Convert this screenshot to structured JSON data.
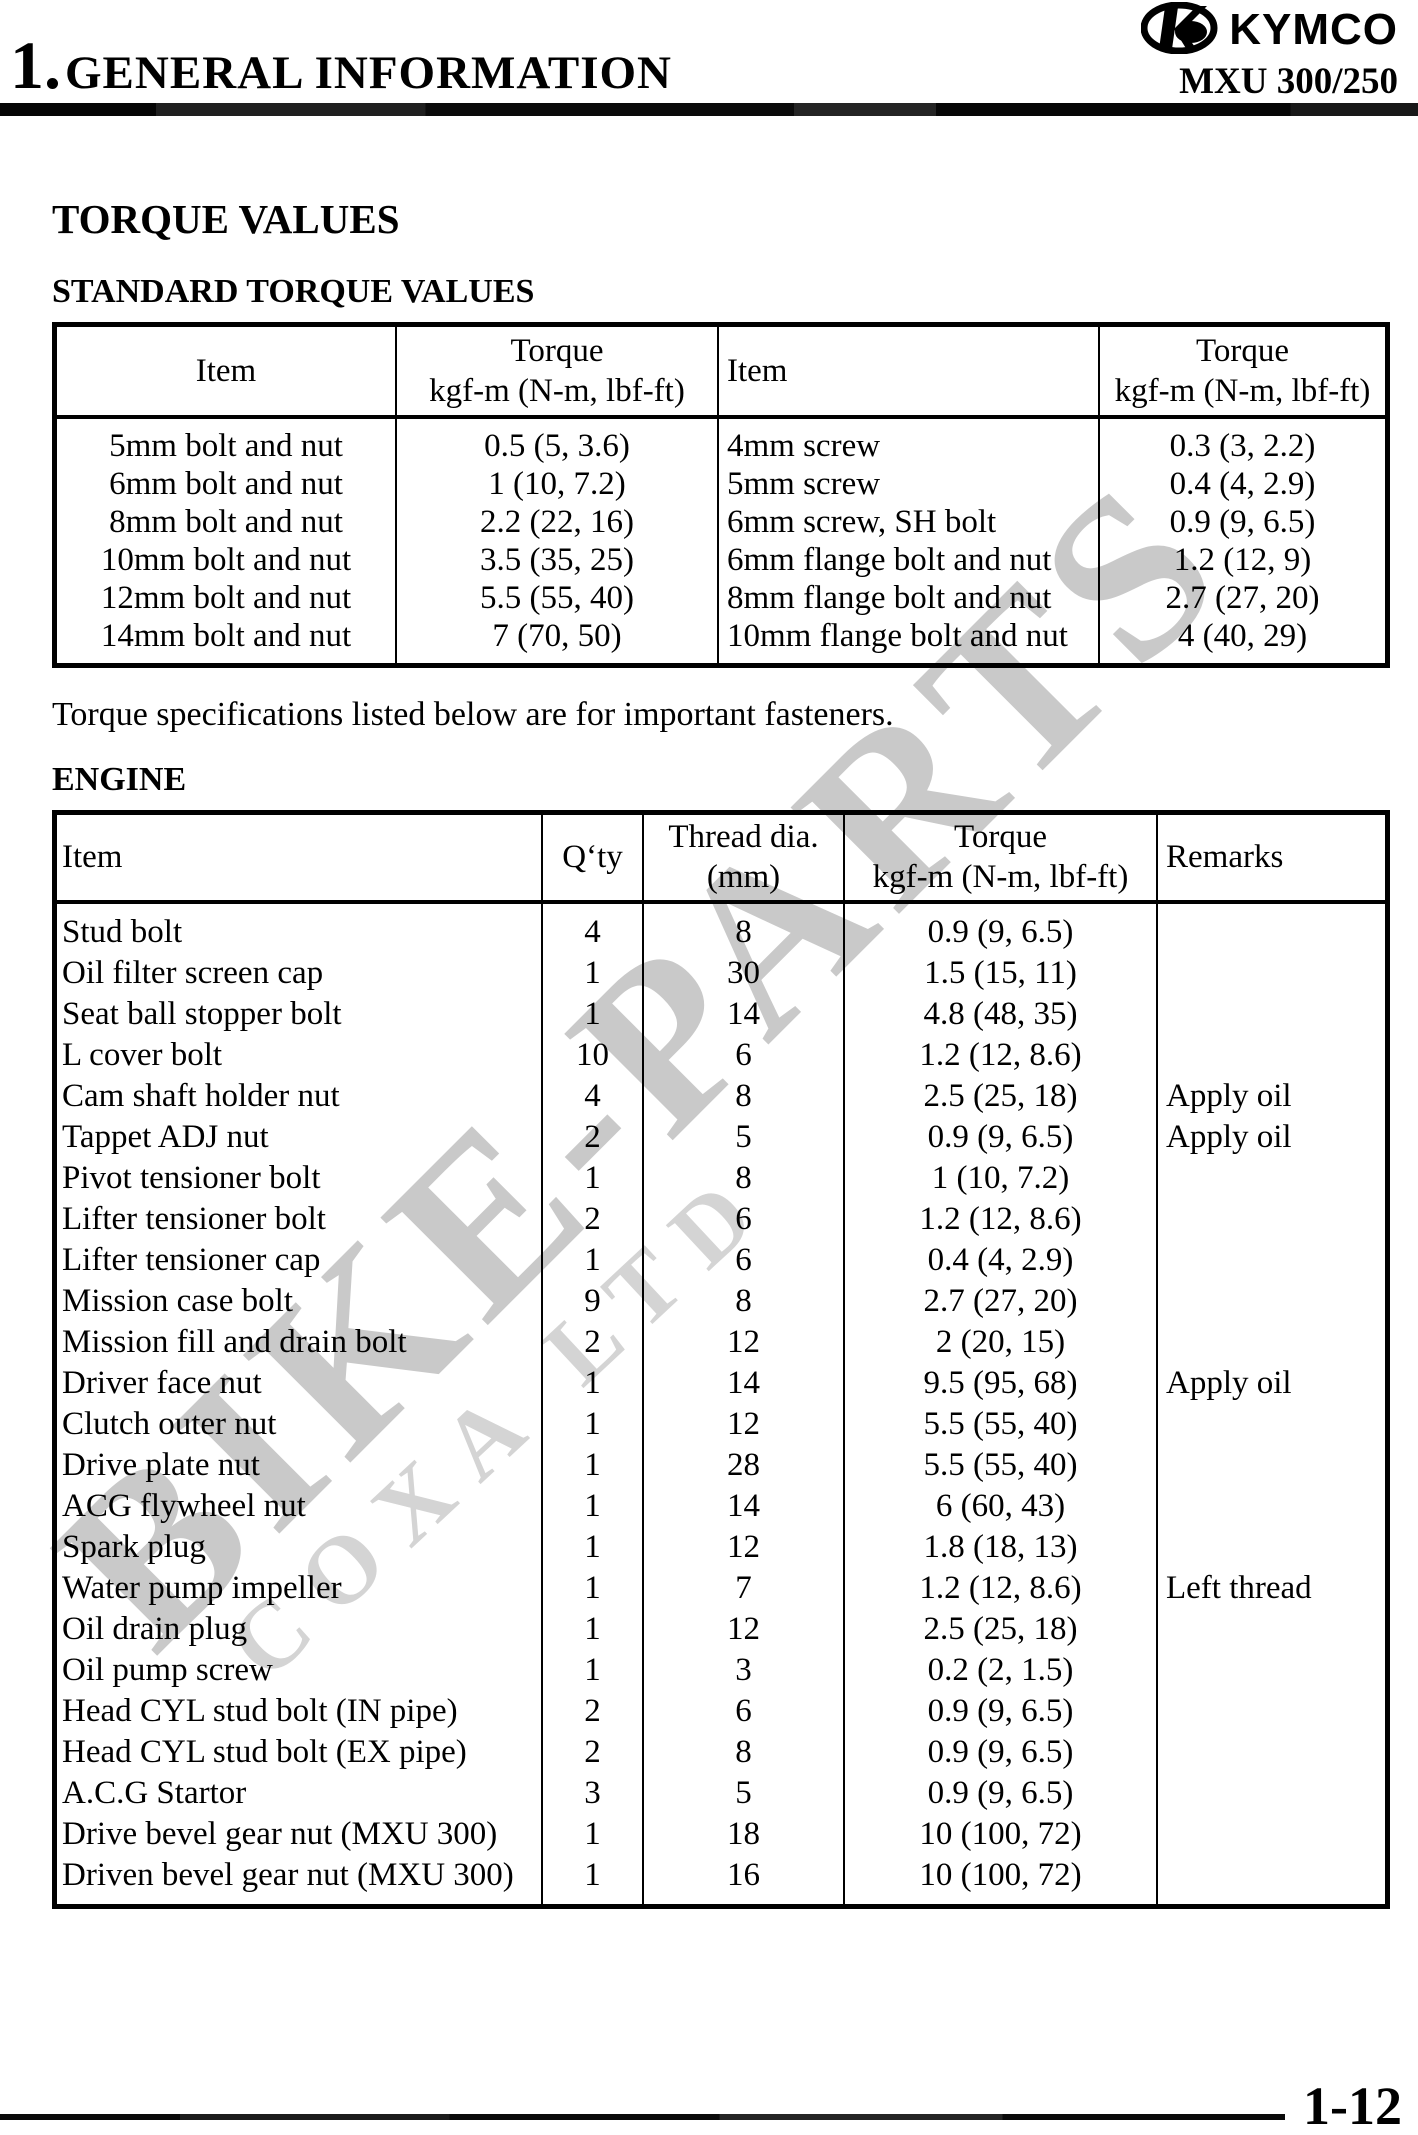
{
  "header": {
    "chapter_number": "1.",
    "chapter_name": "GENERAL INFORMATION",
    "brand": "KYMCO",
    "model": "MXU 300/250"
  },
  "sections": {
    "title": "TORQUE VALUES",
    "standard_heading": "STANDARD TORQUE VALUES",
    "note": "Torque specifications listed below are for important fasteners.",
    "engine_heading": "ENGINE"
  },
  "watermark": {
    "main": "BIKE-PARTS",
    "sub": "COXA LTD"
  },
  "standard_table": {
    "headers": [
      "Item",
      "Torque\nkgf-m (N-m, lbf-ft)",
      "Item",
      "Torque\nkgf-m (N-m, lbf-ft)"
    ],
    "left_rows": [
      [
        "5mm bolt and nut",
        "0.5 (5, 3.6)"
      ],
      [
        "6mm bolt and nut",
        "1 (10, 7.2)"
      ],
      [
        "8mm bolt and nut",
        "2.2 (22, 16)"
      ],
      [
        "10mm bolt and nut",
        "3.5 (35, 25)"
      ],
      [
        "12mm bolt and nut",
        "5.5 (55, 40)"
      ],
      [
        "14mm bolt and nut",
        "7 (70, 50)"
      ]
    ],
    "right_rows": [
      [
        "4mm screw",
        "0.3 (3, 2.2)"
      ],
      [
        "5mm screw",
        "0.4 (4, 2.9)"
      ],
      [
        "6mm screw, SH bolt",
        "0.9 (9, 6.5)"
      ],
      [
        "6mm flange bolt and nut",
        "1.2 (12, 9)"
      ],
      [
        "8mm flange bolt and nut",
        "2.7 (27, 20)"
      ],
      [
        "10mm flange bolt and nut",
        "4 (40, 29)"
      ]
    ]
  },
  "engine_table": {
    "headers": [
      "Item",
      "Q‘ty",
      "Thread dia.\n(mm)",
      "Torque\nkgf-m (N-m, lbf-ft)",
      "Remarks"
    ],
    "rows": [
      [
        "Stud bolt",
        "4",
        "8",
        "0.9 (9, 6.5)",
        ""
      ],
      [
        "Oil filter screen cap",
        "1",
        "30",
        "1.5 (15, 11)",
        ""
      ],
      [
        "Seat ball stopper bolt",
        "1",
        "14",
        "4.8 (48, 35)",
        ""
      ],
      [
        "L cover bolt",
        "10",
        "6",
        "1.2 (12, 8.6)",
        ""
      ],
      [
        "Cam shaft holder nut",
        "4",
        "8",
        "2.5 (25, 18)",
        "Apply oil"
      ],
      [
        "Tappet ADJ nut",
        "2",
        "5",
        "0.9 (9, 6.5)",
        "Apply oil"
      ],
      [
        "Pivot tensioner bolt",
        "1",
        "8",
        "1 (10, 7.2)",
        ""
      ],
      [
        "Lifter tensioner bolt",
        "2",
        "6",
        "1.2 (12, 8.6)",
        ""
      ],
      [
        "Lifter tensioner cap",
        "1",
        "6",
        "0.4 (4, 2.9)",
        ""
      ],
      [
        "Mission case bolt",
        "9",
        "8",
        "2.7 (27, 20)",
        ""
      ],
      [
        "Mission fill and drain bolt",
        "2",
        "12",
        "2 (20, 15)",
        ""
      ],
      [
        "Driver face nut",
        "1",
        "14",
        "9.5 (95, 68)",
        "Apply oil"
      ],
      [
        "Clutch outer nut",
        "1",
        "12",
        "5.5 (55, 40)",
        ""
      ],
      [
        "Drive plate nut",
        "1",
        "28",
        "5.5 (55, 40)",
        ""
      ],
      [
        "ACG flywheel nut",
        "1",
        "14",
        "6 (60, 43)",
        ""
      ],
      [
        "Spark plug",
        "1",
        "12",
        "1.8 (18, 13)",
        ""
      ],
      [
        "Water pump impeller",
        "1",
        "7",
        "1.2 (12, 8.6)",
        "Left thread"
      ],
      [
        "Oil drain plug",
        "1",
        "12",
        "2.5 (25, 18)",
        ""
      ],
      [
        "Oil pump screw",
        "1",
        "3",
        "0.2 (2, 1.5)",
        ""
      ],
      [
        "Head CYL stud bolt (IN pipe)",
        "2",
        "6",
        "0.9 (9, 6.5)",
        ""
      ],
      [
        "Head CYL stud bolt (EX pipe)",
        "2",
        "8",
        "0.9 (9, 6.5)",
        ""
      ],
      [
        "A.C.G Startor",
        "3",
        "5",
        "0.9 (9, 6.5)",
        ""
      ],
      [
        "Drive bevel gear nut (MXU 300)",
        "1",
        "18",
        "10 (100, 72)",
        ""
      ],
      [
        "Driven bevel gear nut (MXU 300)",
        "1",
        "16",
        "10 (100, 72)",
        ""
      ]
    ]
  },
  "footer": {
    "page_number": "1-12"
  },
  "colors": {
    "ink": "#000000",
    "watermark_main": "#c9c9c9",
    "watermark_sub": "#d4d4d4"
  }
}
